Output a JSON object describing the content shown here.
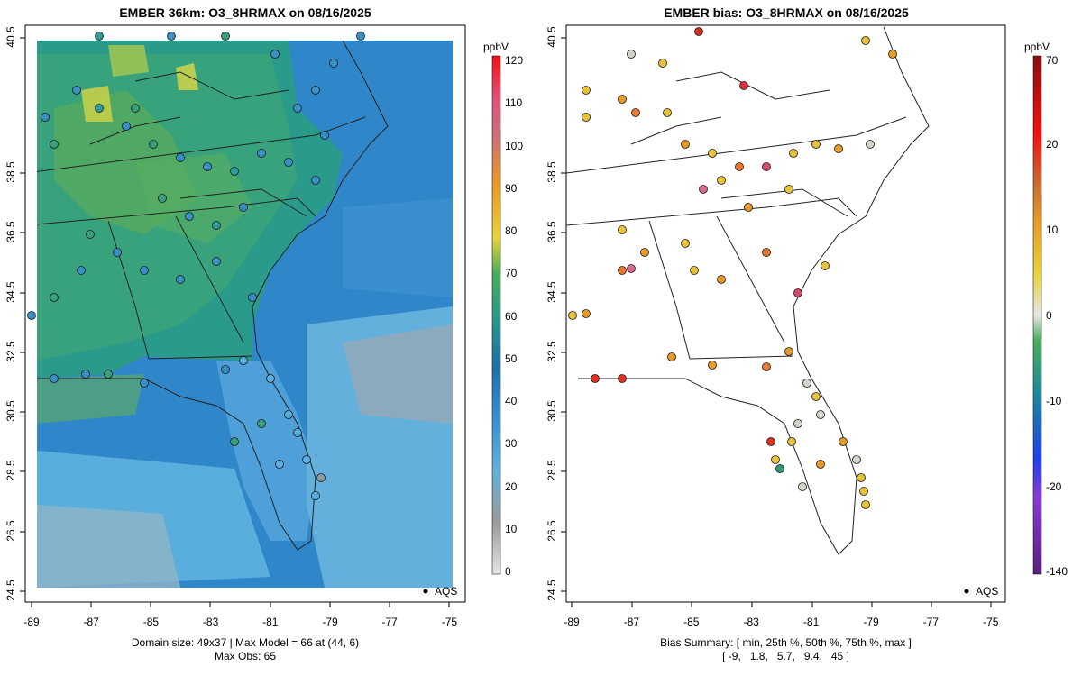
{
  "left_panel": {
    "title": "EMBER 36km: O3_8HRMAX on 08/16/2025",
    "units": "ppbV",
    "colorbar_ticks": [
      "0",
      "10",
      "20",
      "30",
      "40",
      "50",
      "60",
      "70",
      "80",
      "90",
      "100",
      "110",
      "120"
    ],
    "legend_label": "AQS",
    "caption_line1": "Domain size: 49x37 | Max Model = 66 at (44, 6)",
    "caption_line2": "Max Obs: 65"
  },
  "right_panel": {
    "title": "EMBER bias: O3_8HRMAX on 08/16/2025",
    "units": "ppbV",
    "colorbar_ticks": [
      "-140",
      "-20",
      "-10",
      "0",
      "10",
      "20",
      "70"
    ],
    "legend_label": "AQS",
    "caption_line1": "Bias Summary: [ min, 25th %, 50th %, 75th %, max ]",
    "caption_line2": "[ -9,   1.8,   5.7,   9.4,   45 ]"
  },
  "axes": {
    "x_ticks": [
      "-89",
      "-87",
      "-85",
      "-83",
      "-81",
      "-79",
      "-77",
      "-75"
    ],
    "y_ticks": [
      "24.5",
      "26.5",
      "28.5",
      "30.5",
      "32.5",
      "34.5",
      "36.5",
      "38.5",
      "40.5"
    ]
  },
  "colors": {
    "ocean_blue": "#3f8fcf",
    "land_green": "#4aa07a",
    "high_yellow": "#c9d44a",
    "low_gray": "#9aa3a8"
  }
}
